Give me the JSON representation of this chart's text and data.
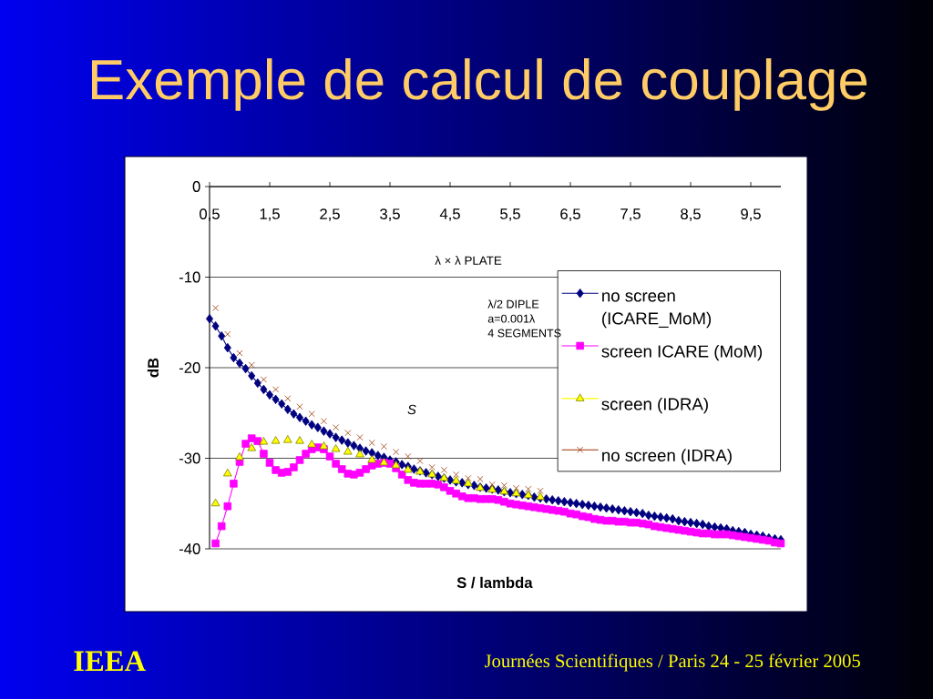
{
  "chart_data": {
    "type": "line",
    "title": "Exemple de calcul de couplage",
    "xlabel": "S / lambda",
    "ylabel": "dB",
    "xlim": [
      0.5,
      10
    ],
    "xticks": [
      {
        "value": 0.5,
        "label": "0,5"
      },
      {
        "value": 1.5,
        "label": "1,5"
      },
      {
        "value": 2.5,
        "label": "2,5"
      },
      {
        "value": 3.5,
        "label": "3,5"
      },
      {
        "value": 4.5,
        "label": "4,5"
      },
      {
        "value": 5.5,
        "label": "5,5"
      },
      {
        "value": 6.5,
        "label": "6,5"
      },
      {
        "value": 7.5,
        "label": "7,5"
      },
      {
        "value": 8.5,
        "label": "8,5"
      },
      {
        "value": 9.5,
        "label": "9,5"
      }
    ],
    "ylim": [
      -40,
      0
    ],
    "yticks": [
      -40,
      -30,
      -20,
      -10,
      0
    ],
    "grid": "y",
    "legend": "right",
    "series": [
      {
        "name": "no screen (ICARE_MoM)",
        "color": "#000080",
        "marker": "diamond",
        "x": [
          0.5,
          0.6,
          0.7,
          0.8,
          0.9,
          1.0,
          1.1,
          1.2,
          1.3,
          1.4,
          1.5,
          1.6,
          1.7,
          1.8,
          1.9,
          2.0,
          2.1,
          2.2,
          2.3,
          2.4,
          2.5,
          2.6,
          2.7,
          2.8,
          2.9,
          3.0,
          3.1,
          3.2,
          3.3,
          3.4,
          3.5,
          3.6,
          3.7,
          3.8,
          3.9,
          4.0,
          4.1,
          4.2,
          4.3,
          4.4,
          4.5,
          4.6,
          4.7,
          4.8,
          4.9,
          5.0,
          5.1,
          5.2,
          5.3,
          5.4,
          5.5,
          5.6,
          5.7,
          5.8,
          5.9,
          6.0,
          6.1,
          6.2,
          6.3,
          6.4,
          6.5,
          6.6,
          6.7,
          6.8,
          6.9,
          7.0,
          7.1,
          7.2,
          7.3,
          7.4,
          7.5,
          7.6,
          7.7,
          7.8,
          7.9,
          8.0,
          8.1,
          8.2,
          8.3,
          8.4,
          8.5,
          8.6,
          8.7,
          8.8,
          8.9,
          9.0,
          9.1,
          9.2,
          9.3,
          9.4,
          9.5,
          9.6,
          9.7,
          9.8,
          9.9,
          10.0
        ],
        "values": [
          -14.6,
          -15.4,
          -16.5,
          -17.8,
          -18.9,
          -19.5,
          -20.1,
          -20.9,
          -21.7,
          -22.4,
          -23.0,
          -23.5,
          -24.0,
          -24.6,
          -25.1,
          -25.5,
          -25.9,
          -26.3,
          -26.6,
          -27.0,
          -27.3,
          -27.7,
          -28.0,
          -28.3,
          -28.6,
          -28.9,
          -29.2,
          -29.4,
          -29.7,
          -29.9,
          -30.2,
          -30.4,
          -30.7,
          -30.9,
          -31.2,
          -31.4,
          -31.6,
          -31.8,
          -32.0,
          -32.2,
          -32.4,
          -32.6,
          -32.7,
          -32.9,
          -33.0,
          -33.2,
          -33.3,
          -33.4,
          -33.5,
          -33.7,
          -33.8,
          -33.9,
          -34.0,
          -34.1,
          -34.3,
          -34.4,
          -34.5,
          -34.6,
          -34.7,
          -34.8,
          -34.9,
          -35.0,
          -35.1,
          -35.2,
          -35.3,
          -35.4,
          -35.5,
          -35.6,
          -35.7,
          -35.8,
          -35.9,
          -36.0,
          -36.1,
          -36.3,
          -36.4,
          -36.5,
          -36.6,
          -36.7,
          -36.9,
          -37.0,
          -37.1,
          -37.2,
          -37.3,
          -37.5,
          -37.6,
          -37.7,
          -37.8,
          -38.0,
          -38.1,
          -38.2,
          -38.4,
          -38.5,
          -38.6,
          -38.8,
          -38.9,
          -39.0
        ]
      },
      {
        "name": "screen ICARE (MoM)",
        "color": "#ff00ff",
        "marker": "square",
        "x": [
          0.6,
          0.7,
          0.8,
          0.9,
          1.0,
          1.1,
          1.2,
          1.3,
          1.4,
          1.5,
          1.6,
          1.7,
          1.8,
          1.9,
          2.0,
          2.1,
          2.2,
          2.3,
          2.4,
          2.5,
          2.6,
          2.7,
          2.8,
          2.9,
          3.0,
          3.1,
          3.2,
          3.3,
          3.4,
          3.5,
          3.6,
          3.7,
          3.8,
          3.9,
          4.0,
          4.1,
          4.2,
          4.3,
          4.4,
          4.5,
          4.6,
          4.7,
          4.8,
          4.9,
          5.0,
          5.1,
          5.2,
          5.3,
          5.4,
          5.5,
          5.6,
          5.7,
          5.8,
          5.9,
          6.0,
          6.1,
          6.2,
          6.3,
          6.4,
          6.5,
          6.6,
          6.7,
          6.8,
          6.9,
          7.0,
          7.1,
          7.2,
          7.3,
          7.4,
          7.5,
          7.6,
          7.7,
          7.8,
          7.9,
          8.0,
          8.1,
          8.2,
          8.3,
          8.4,
          8.5,
          8.6,
          8.7,
          8.8,
          8.9,
          9.0,
          9.1,
          9.2,
          9.3,
          9.4,
          9.5,
          9.6,
          9.7,
          9.8,
          9.9,
          10.0
        ],
        "values": [
          -39.4,
          -37.5,
          -35.3,
          -32.8,
          -30.4,
          -28.4,
          -27.8,
          -28.1,
          -29.5,
          -30.5,
          -31.3,
          -31.6,
          -31.5,
          -31.0,
          -30.2,
          -29.5,
          -29.0,
          -28.8,
          -29.0,
          -29.8,
          -30.6,
          -31.2,
          -31.7,
          -31.8,
          -31.6,
          -31.2,
          -30.8,
          -30.6,
          -30.5,
          -30.6,
          -31.1,
          -31.8,
          -32.4,
          -32.7,
          -32.8,
          -32.8,
          -32.8,
          -32.9,
          -33.2,
          -33.6,
          -33.9,
          -34.2,
          -34.4,
          -34.4,
          -34.5,
          -34.5,
          -34.5,
          -34.6,
          -34.8,
          -35.0,
          -35.1,
          -35.2,
          -35.3,
          -35.4,
          -35.5,
          -35.6,
          -35.7,
          -35.8,
          -35.9,
          -36.1,
          -36.2,
          -36.4,
          -36.5,
          -36.7,
          -36.8,
          -36.9,
          -36.9,
          -37.0,
          -37.0,
          -37.1,
          -37.1,
          -37.2,
          -37.3,
          -37.5,
          -37.6,
          -37.7,
          -37.8,
          -37.9,
          -38.0,
          -38.1,
          -38.2,
          -38.3,
          -38.3,
          -38.4,
          -38.4,
          -38.4,
          -38.5,
          -38.6,
          -38.7,
          -38.8,
          -38.9,
          -39.0,
          -39.1,
          -39.3,
          -39.4
        ]
      },
      {
        "name": "screen (IDRA)",
        "type": "scatter",
        "color": "#ffff00",
        "marker": "triangle",
        "x": [
          0.6,
          0.8,
          1.0,
          1.2,
          1.4,
          1.6,
          1.8,
          2.0,
          2.2,
          2.4,
          2.6,
          2.8,
          3.0,
          3.2,
          3.4,
          3.6,
          3.8,
          4.0,
          4.2,
          4.4,
          4.6,
          4.8,
          5.0,
          5.2,
          5.4,
          5.6,
          5.8,
          6.0
        ],
        "values": [
          -35.0,
          -31.7,
          -29.9,
          -28.9,
          -28.2,
          -28.1,
          -28.0,
          -28.1,
          -28.5,
          -28.7,
          -29.0,
          -29.3,
          -29.6,
          -30.2,
          -30.5,
          -30.8,
          -31.3,
          -31.5,
          -31.8,
          -32.2,
          -32.5,
          -32.8,
          -33.3,
          -33.5,
          -33.7,
          -33.9,
          -34.1,
          -34.3
        ]
      },
      {
        "name": "no screen (IDRA)",
        "type": "scatter",
        "color": "#993300",
        "marker": "cross",
        "x": [
          0.6,
          0.8,
          1.0,
          1.2,
          1.4,
          1.6,
          1.8,
          2.0,
          2.2,
          2.4,
          2.6,
          2.8,
          3.0,
          3.2,
          3.4,
          3.6,
          3.8,
          4.0,
          4.2,
          4.4,
          4.6,
          4.8,
          5.0,
          5.2,
          5.4,
          5.6,
          5.8,
          6.0
        ],
        "values": [
          -13.4,
          -16.3,
          -18.4,
          -19.7,
          -21.3,
          -22.4,
          -23.4,
          -24.3,
          -25.1,
          -25.9,
          -26.6,
          -27.2,
          -27.7,
          -28.3,
          -28.7,
          -29.3,
          -29.8,
          -30.3,
          -31.0,
          -31.3,
          -31.8,
          -32.2,
          -32.3,
          -32.9,
          -33.0,
          -33.3,
          -33.4,
          -33.6
        ]
      }
    ],
    "annotations": [
      "λ × λ PLATE",
      "λ/2 DIPLE",
      "a=0.001λ",
      "4 SEGMENTS",
      "S",
      "IEEA",
      "Journées Scientifiques  /  Paris 24 - 25 février 2005"
    ]
  }
}
